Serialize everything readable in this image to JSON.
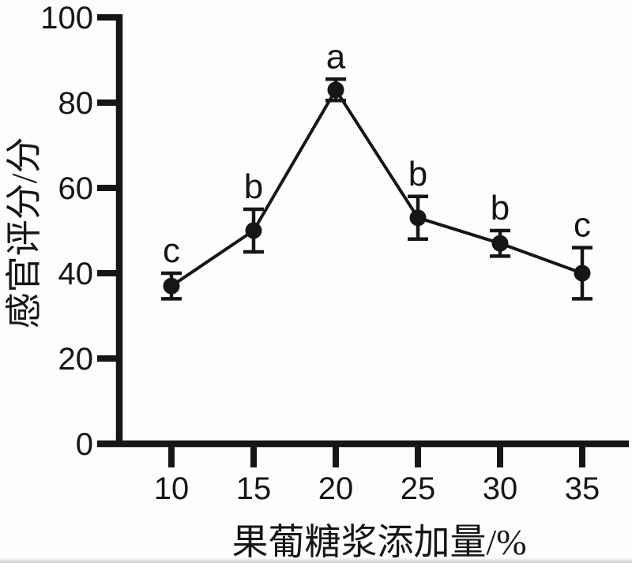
{
  "chart_data": {
    "type": "line",
    "title": "",
    "xlabel": "果葡糖浆添加量/%",
    "ylabel": "感官评分/分",
    "x": [
      10,
      15,
      20,
      25,
      30,
      35
    ],
    "xticks": [
      10,
      15,
      20,
      25,
      30,
      35
    ],
    "yticks": [
      0,
      20,
      40,
      60,
      80,
      100
    ],
    "xlim": [
      7.5,
      37.5
    ],
    "ylim": [
      0,
      100
    ],
    "grid": false,
    "legend": "none",
    "marker": "filled-circle",
    "line_color": "#161616",
    "background_color": "#fdfdfd",
    "series": [
      {
        "name": "感官评分",
        "values": [
          37,
          50,
          83,
          53,
          47,
          40
        ],
        "errors": [
          3,
          5,
          2.5,
          5,
          3,
          6
        ],
        "point_labels": [
          "c",
          "b",
          "a",
          "b",
          "b",
          "c"
        ]
      }
    ]
  }
}
